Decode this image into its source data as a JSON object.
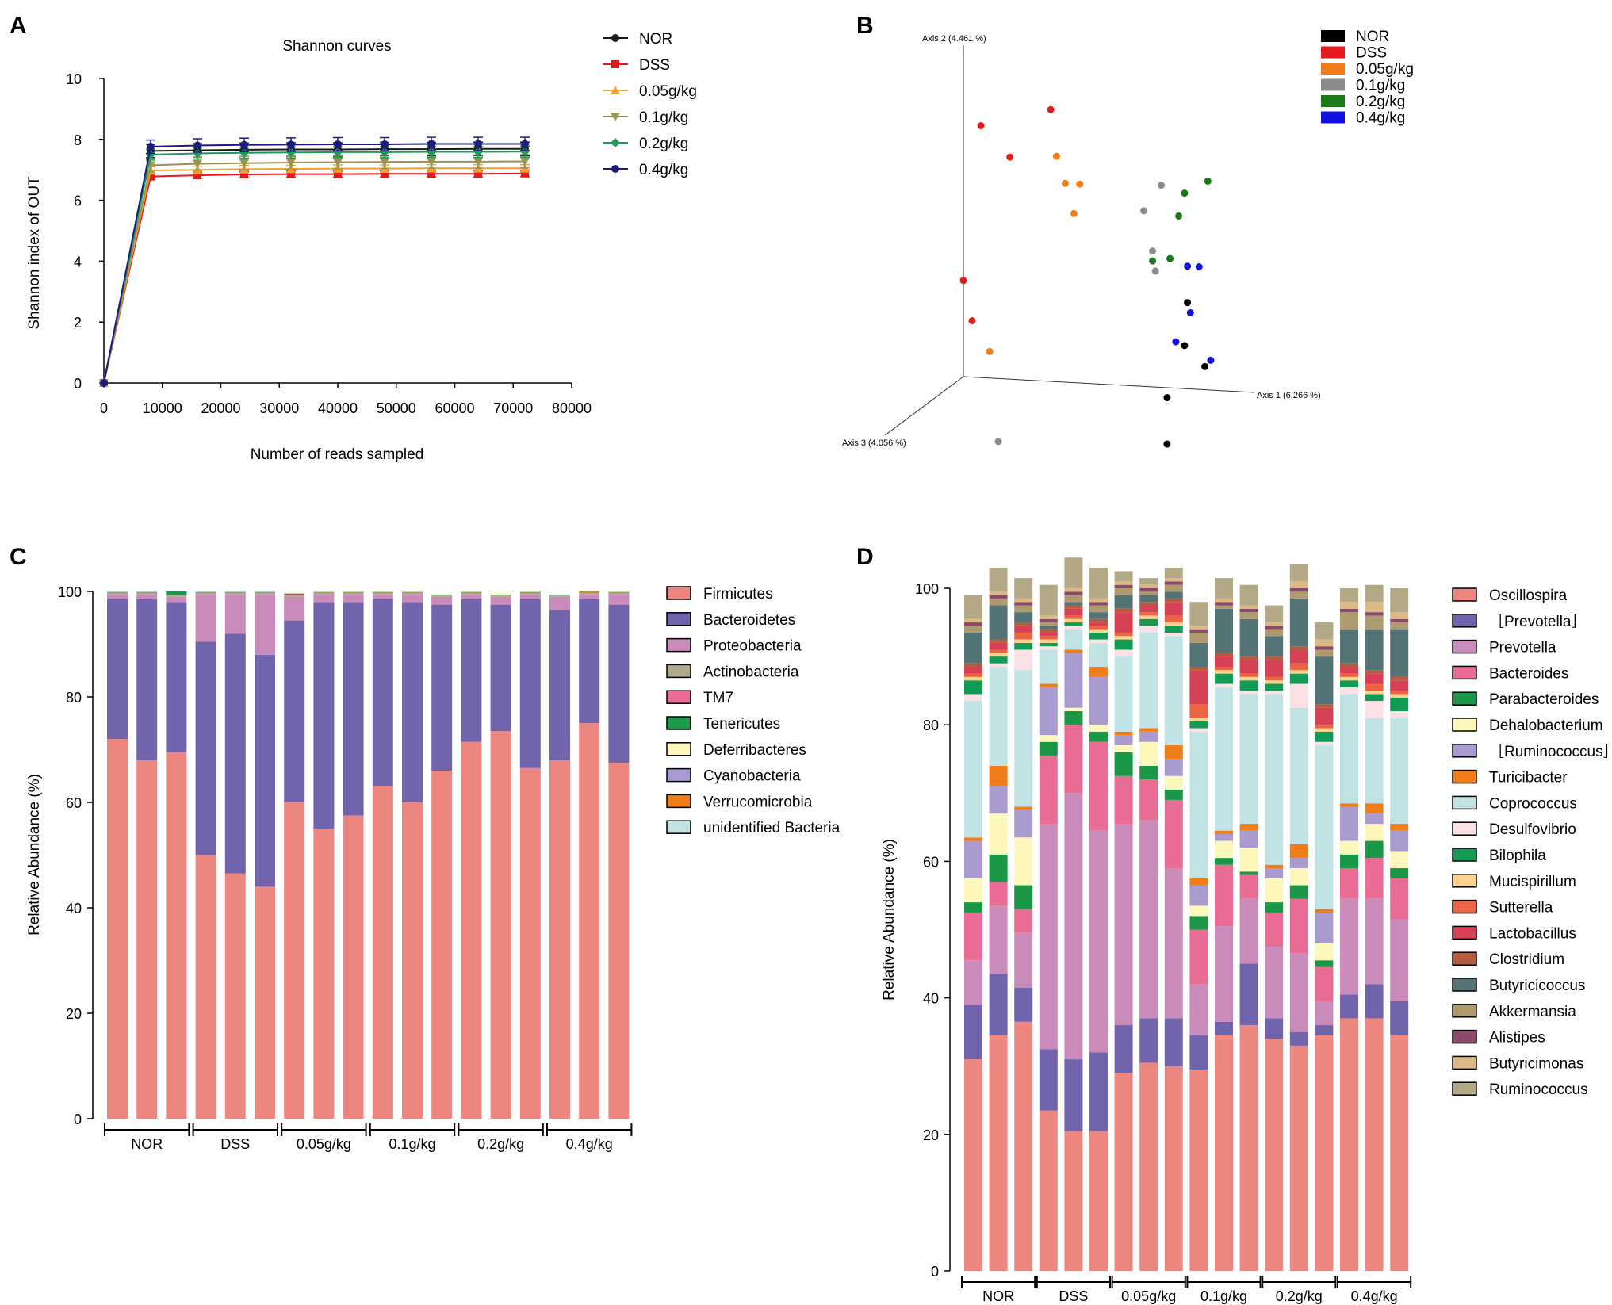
{
  "panels": {
    "a": "A",
    "b": "B",
    "c": "C",
    "d": "D"
  },
  "chart_data": [
    {
      "type": "line",
      "title": "Shannon curves",
      "xlabel": "Number of reads sampled",
      "ylabel": "Shannon index of OUT",
      "xlim": [
        0,
        80000
      ],
      "ylim": [
        0,
        10
      ],
      "xticks": [
        0,
        10000,
        20000,
        30000,
        40000,
        50000,
        60000,
        70000,
        80000
      ],
      "yticks": [
        0,
        2,
        4,
        6,
        8,
        10
      ],
      "x": [
        0,
        8000,
        16000,
        24000,
        32000,
        40000,
        48000,
        56000,
        64000,
        72000
      ],
      "series": [
        {
          "name": "NOR",
          "color": "#1a1a1a",
          "marker": "circle",
          "values": [
            0,
            7.62,
            7.64,
            7.66,
            7.67,
            7.67,
            7.68,
            7.68,
            7.69,
            7.69
          ],
          "err": 0.22
        },
        {
          "name": "DSS",
          "color": "#e41a1c",
          "marker": "square",
          "values": [
            0,
            6.78,
            6.82,
            6.85,
            6.86,
            6.86,
            6.87,
            6.87,
            6.87,
            6.88
          ],
          "err": 0.1
        },
        {
          "name": "0.05g/kg",
          "color": "#f0a030",
          "marker": "triangle-up",
          "values": [
            0,
            6.98,
            7.0,
            7.02,
            7.03,
            7.04,
            7.04,
            7.05,
            7.05,
            7.05
          ],
          "err": 0.12
        },
        {
          "name": "0.1g/kg",
          "color": "#9a9450",
          "marker": "triangle-down",
          "values": [
            0,
            7.15,
            7.2,
            7.22,
            7.24,
            7.25,
            7.26,
            7.27,
            7.27,
            7.28
          ],
          "err": 0.22
        },
        {
          "name": "0.2g/kg",
          "color": "#1e9a5a",
          "marker": "diamond",
          "values": [
            0,
            7.5,
            7.54,
            7.56,
            7.57,
            7.58,
            7.58,
            7.59,
            7.59,
            7.6
          ],
          "err": 0.18
        },
        {
          "name": "0.4g/kg",
          "color": "#1c1c80",
          "marker": "circle",
          "values": [
            0,
            7.76,
            7.8,
            7.82,
            7.83,
            7.84,
            7.84,
            7.85,
            7.85,
            7.85
          ],
          "err": 0.22
        }
      ]
    },
    {
      "type": "scatter",
      "axis_labels": {
        "x": "Axis 1 (6.266 %)",
        "y": "Axis 2 (4.461 %)",
        "z": "Axis 3 (4.056 %)"
      },
      "legend": [
        {
          "name": "NOR",
          "color": "#000000"
        },
        {
          "name": "DSS",
          "color": "#e41a1c"
        },
        {
          "name": "0.05g/kg",
          "color": "#f07d1a"
        },
        {
          "name": "0.1g/kg",
          "color": "#8c8c8c"
        },
        {
          "name": "0.2g/kg",
          "color": "#1a7a1a"
        },
        {
          "name": "0.4g/kg",
          "color": "#1010e0"
        }
      ],
      "points": [
        {
          "group": "DSS",
          "u": 0.06,
          "v": 0.76
        },
        {
          "group": "DSS",
          "u": 0.16,
          "v": 0.67
        },
        {
          "group": "DSS",
          "u": 0.3,
          "v": 0.82
        },
        {
          "group": "DSS",
          "u": 0.0,
          "v": 0.29
        },
        {
          "group": "DSS",
          "u": 0.03,
          "v": 0.17
        },
        {
          "group": "0.05g/kg",
          "u": 0.32,
          "v": 0.68
        },
        {
          "group": "0.05g/kg",
          "u": 0.35,
          "v": 0.6
        },
        {
          "group": "0.05g/kg",
          "u": 0.4,
          "v": 0.6
        },
        {
          "group": "0.05g/kg",
          "u": 0.38,
          "v": 0.51
        },
        {
          "group": "0.05g/kg",
          "u": 0.09,
          "v": 0.08
        },
        {
          "group": "0.1g/kg",
          "u": 0.68,
          "v": 0.61
        },
        {
          "group": "0.1g/kg",
          "u": 0.62,
          "v": 0.53
        },
        {
          "group": "0.1g/kg",
          "u": 0.65,
          "v": 0.41
        },
        {
          "group": "0.1g/kg",
          "u": 0.66,
          "v": 0.35
        },
        {
          "group": "0.1g/kg",
          "u": 0.12,
          "v": -0.19
        },
        {
          "group": "0.2g/kg",
          "u": 0.76,
          "v": 0.59
        },
        {
          "group": "0.2g/kg",
          "u": 0.84,
          "v": 0.63
        },
        {
          "group": "0.2g/kg",
          "u": 0.74,
          "v": 0.52
        },
        {
          "group": "0.2g/kg",
          "u": 0.71,
          "v": 0.39
        },
        {
          "group": "0.2g/kg",
          "u": 0.65,
          "v": 0.38
        },
        {
          "group": "0.4g/kg",
          "u": 0.77,
          "v": 0.37
        },
        {
          "group": "0.4g/kg",
          "u": 0.81,
          "v": 0.37
        },
        {
          "group": "0.4g/kg",
          "u": 0.78,
          "v": 0.23
        },
        {
          "group": "0.4g/kg",
          "u": 0.73,
          "v": 0.14
        },
        {
          "group": "0.4g/kg",
          "u": 0.85,
          "v": 0.09
        },
        {
          "group": "NOR",
          "u": 0.77,
          "v": 0.26
        },
        {
          "group": "NOR",
          "u": 0.76,
          "v": 0.13
        },
        {
          "group": "NOR",
          "u": 0.83,
          "v": 0.07
        },
        {
          "group": "NOR",
          "u": 0.7,
          "v": -0.03
        },
        {
          "group": "NOR",
          "u": 0.7,
          "v": -0.17
        }
      ]
    },
    {
      "type": "bar",
      "stacked": true,
      "ylabel": "Relative Abundance (%)",
      "ylim": [
        0,
        100
      ],
      "yticks": [
        0,
        20,
        40,
        60,
        80,
        100
      ],
      "groups": [
        "NOR",
        "DSS",
        "0.05g/kg",
        "0.1g/kg",
        "0.2g/kg",
        "0.4g/kg"
      ],
      "bars_per_group": 3,
      "series": [
        {
          "name": "Firmicutes",
          "color": "#ee8680",
          "values": [
            72,
            68,
            69.5,
            50,
            46.5,
            44,
            60,
            55,
            57.5,
            63,
            60,
            66,
            71.5,
            73.5,
            66.5,
            68,
            75,
            67.5
          ]
        },
        {
          "name": "Bacteroidetes",
          "color": "#7263ad",
          "values": [
            26.5,
            30.5,
            28.5,
            40.5,
            45.5,
            44,
            34.5,
            43,
            40.5,
            35.5,
            38,
            31.5,
            27,
            24,
            32,
            28.5,
            23.5,
            30
          ]
        },
        {
          "name": "Proteobacteria",
          "color": "#c98bb9",
          "values": [
            1,
            1,
            1,
            9,
            7.5,
            11.5,
            4.5,
            1.5,
            1.5,
            1,
            1.5,
            1.5,
            1,
            1.5,
            1,
            2.5,
            1,
            2
          ]
        },
        {
          "name": "Actinobacteria",
          "color": "#b0a98a",
          "values": [
            0.2,
            0.2,
            0.2,
            0.2,
            0.2,
            0.2,
            0.3,
            0.2,
            0.2,
            0.2,
            0.2,
            0.2,
            0.2,
            0.2,
            0.2,
            0.2,
            0.2,
            0.2
          ]
        },
        {
          "name": "TM7",
          "color": "#e86c94",
          "values": [
            0.1,
            0.1,
            0.1,
            0.1,
            0.1,
            0.1,
            0.1,
            0.1,
            0.1,
            0.1,
            0.1,
            0.1,
            0.1,
            0.1,
            0.1,
            0.1,
            0.1,
            0.1
          ]
        },
        {
          "name": "Tenericutes",
          "color": "#1a9848",
          "values": [
            0.1,
            0.1,
            0.7,
            0.1,
            0.1,
            0.1,
            0.2,
            0.1,
            0.1,
            0.1,
            0.1,
            0.1,
            0.1,
            0.1,
            0.1,
            0.1,
            0.1,
            0.1
          ]
        },
        {
          "name": "Deferribacteres",
          "color": "#fdf7bb",
          "values": [
            0,
            0,
            0,
            0,
            0,
            0,
            0.3,
            0.1,
            0.1,
            0.1,
            0.1,
            0.2,
            0.1,
            0.4,
            0.1,
            0.1,
            0,
            0.1
          ]
        },
        {
          "name": "Cyanobacteria",
          "color": "#a99ad0",
          "values": [
            0,
            0,
            0,
            0,
            0,
            0,
            0,
            0,
            0,
            0,
            0,
            0,
            0,
            0,
            0.1,
            0,
            0,
            0
          ]
        },
        {
          "name": "Verrucomicrobia",
          "color": "#f07d1a",
          "values": [
            0,
            0,
            0,
            0,
            0,
            0,
            0,
            0,
            0,
            0,
            0,
            0,
            0,
            0,
            0,
            0,
            0.2,
            0
          ]
        },
        {
          "name": "unidentified Bacteria",
          "color": "#c2e3e6",
          "values": [
            0,
            0,
            0,
            0,
            0,
            0,
            0,
            0,
            0,
            0,
            0,
            0,
            0,
            0,
            0,
            0,
            0,
            0
          ]
        }
      ]
    },
    {
      "type": "bar",
      "stacked": true,
      "ylabel": "Relative Abundance (%)",
      "ylim": [
        0,
        100
      ],
      "yticks": [
        0,
        20,
        40,
        60,
        80,
        100
      ],
      "groups": [
        "NOR",
        "DSS",
        "0.05g/kg",
        "0.1g/kg",
        "0.2g/kg",
        "0.4g/kg"
      ],
      "bars_per_group": 3,
      "series": [
        {
          "name": "Oscillospira",
          "color": "#ee8680",
          "values": [
            31,
            34.5,
            36.5,
            23.5,
            20.5,
            20.5,
            29,
            30.5,
            30,
            29.5,
            34.5,
            36,
            34,
            33,
            34.5,
            37,
            37,
            34.5
          ]
        },
        {
          "name": "［Prevotella］",
          "color": "#7263ad",
          "values": [
            8,
            9,
            5,
            9,
            10.5,
            11.5,
            7,
            6.5,
            7,
            5,
            2,
            9,
            3,
            2,
            1.5,
            3.5,
            5,
            5
          ]
        },
        {
          "name": "Prevotella",
          "color": "#c98bb9",
          "values": [
            6.5,
            10,
            8,
            33,
            39,
            32.5,
            29.5,
            29,
            22,
            7.5,
            14,
            9.5,
            10.5,
            11.5,
            3.5,
            14,
            12.5,
            12
          ]
        },
        {
          "name": "Bacteroides",
          "color": "#e86c94",
          "values": [
            7,
            3.5,
            3.5,
            10,
            10,
            13,
            7,
            6,
            10,
            8,
            9,
            3.5,
            5,
            8,
            5,
            4.5,
            6,
            6
          ]
        },
        {
          "name": "Parabacteroides",
          "color": "#1a9848",
          "values": [
            1.5,
            4,
            3.5,
            2,
            2,
            1.5,
            3.5,
            2,
            1.5,
            2,
            1,
            0.5,
            1.5,
            2,
            1,
            2,
            2.5,
            1.5
          ]
        },
        {
          "name": "Dehalobacterium",
          "color": "#fdf7bb",
          "values": [
            3.5,
            6,
            7,
            1,
            0.5,
            1,
            1,
            3.5,
            2,
            1.5,
            2.5,
            3.5,
            3.5,
            2.5,
            2.5,
            2,
            2.5,
            2.5
          ]
        },
        {
          "name": "［Ruminococcus］",
          "color": "#a99ad0",
          "values": [
            5.5,
            4,
            4,
            7,
            8,
            7,
            1.5,
            1.5,
            2.5,
            3,
            1,
            2.5,
            1.5,
            1.5,
            4.5,
            5,
            1.5,
            3
          ]
        },
        {
          "name": "Turicibacter",
          "color": "#f07d1a",
          "values": [
            0.5,
            3,
            0.5,
            0.5,
            0.5,
            1.5,
            0.5,
            0.5,
            2,
            1,
            0.5,
            1,
            0.5,
            2,
            0.5,
            0.5,
            1.5,
            1
          ]
        },
        {
          "name": "Coprococcus",
          "color": "#c2e3e6",
          "values": [
            20,
            14.5,
            20,
            5,
            3,
            3.5,
            11,
            14,
            16,
            21.5,
            21,
            19,
            25,
            20,
            24,
            16,
            12.5,
            15.5
          ]
        },
        {
          "name": "Desulfovibrio",
          "color": "#fae1e6",
          "values": [
            1,
            0.5,
            3,
            0.5,
            0.5,
            0.5,
            1,
            1,
            0.5,
            0.5,
            0.5,
            0.5,
            0.5,
            3.5,
            0.5,
            1,
            2.5,
            1
          ]
        },
        {
          "name": "Bilophila",
          "color": "#139a55",
          "values": [
            2,
            1,
            1,
            0.5,
            0.5,
            1,
            1.5,
            1,
            1,
            1,
            1.5,
            1.5,
            1,
            1.5,
            1.5,
            1,
            1,
            2
          ]
        },
        {
          "name": "Mucispirillum",
          "color": "#fdd38c",
          "values": [
            0.5,
            0.5,
            0.5,
            0.5,
            0.5,
            0.5,
            0.5,
            0.5,
            0.5,
            0.5,
            0.5,
            0.5,
            0.5,
            0.5,
            0.5,
            0.5,
            0.5,
            0.5
          ]
        },
        {
          "name": "Sutterella",
          "color": "#ec6444",
          "values": [
            0.5,
            0.5,
            1,
            0.5,
            0.5,
            0.5,
            0.5,
            0.5,
            1,
            2,
            0.5,
            0.5,
            0.5,
            1,
            0.5,
            0.5,
            1,
            0.5
          ]
        },
        {
          "name": "Lactobacillus",
          "color": "#d64155",
          "values": [
            1,
            1,
            1,
            0.5,
            1,
            0.5,
            3,
            1,
            2,
            5,
            1.5,
            2,
            2.5,
            2,
            2.5,
            1,
            1.5,
            1.5
          ]
        },
        {
          "name": "Clostridium",
          "color": "#b55b3f",
          "values": [
            0.5,
            0.5,
            0.5,
            0.5,
            0.5,
            0.5,
            0.5,
            0.5,
            0.5,
            0.5,
            0.5,
            0.5,
            0.5,
            0.5,
            0.5,
            0.5,
            0.5,
            0.5
          ]
        },
        {
          "name": "Butyricicoccus",
          "color": "#547377",
          "values": [
            4.5,
            5,
            1.5,
            0.5,
            0.5,
            1,
            2,
            1,
            1,
            3.5,
            6.5,
            5.5,
            3,
            7,
            7,
            5,
            6,
            7
          ]
        },
        {
          "name": "Akkermansia",
          "color": "#ad9a6e",
          "values": [
            1,
            1,
            1,
            0.5,
            1,
            1,
            1,
            0.5,
            1,
            1.5,
            0.5,
            1,
            1,
            1,
            1,
            2.5,
            2,
            1
          ]
        },
        {
          "name": "Alistipes",
          "color": "#8b4a6c",
          "values": [
            0.5,
            0.5,
            0.5,
            0.5,
            0.5,
            0.5,
            0.5,
            0.5,
            0.5,
            0.5,
            0.5,
            0.5,
            0.5,
            0.5,
            0.5,
            0.5,
            0.5,
            0.5
          ]
        },
        {
          "name": "Butyricimonas",
          "color": "#dcb884",
          "values": [
            0.5,
            0.5,
            0.5,
            0.5,
            0.5,
            0.5,
            0.5,
            0.5,
            0.5,
            0.5,
            0.5,
            0.5,
            0.5,
            1,
            1,
            1,
            1.5,
            1
          ]
        },
        {
          "name": "Ruminococcus",
          "color": "#b4a986",
          "values": [
            3.5,
            3.5,
            3,
            4.5,
            4.5,
            4.5,
            1.5,
            1,
            1.5,
            3.5,
            3,
            3,
            2.5,
            2.5,
            2.5,
            2,
            2.5,
            3.5
          ]
        }
      ]
    }
  ]
}
